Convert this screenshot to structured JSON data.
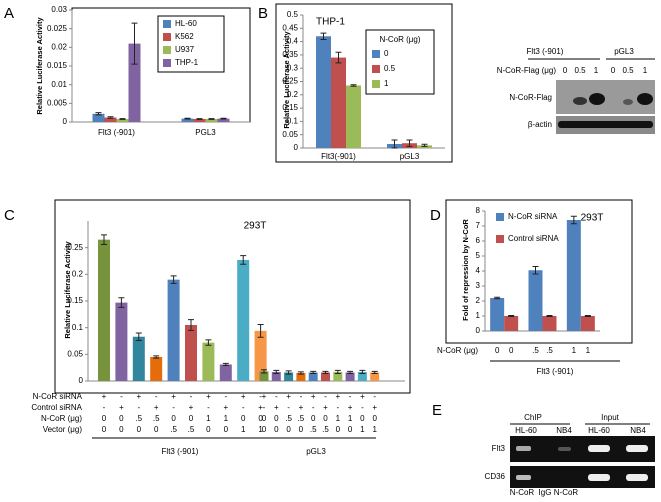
{
  "panel_letters": [
    "A",
    "B",
    "C",
    "D",
    "E"
  ],
  "chart_data": [
    {
      "type": "bar",
      "y_label": "Relative Luciferase Activity",
      "categories": [
        "Flt3 (-901)",
        "PGL3"
      ],
      "series": [
        {
          "name": "HL-60",
          "color": "#4f81bd",
          "values": [
            0.0022,
            0.0009
          ],
          "errors": [
            0.0003,
            0.0001
          ]
        },
        {
          "name": "K562",
          "color": "#c0504d",
          "values": [
            0.0012,
            0.0008
          ],
          "errors": [
            0.0002,
            0.0001
          ]
        },
        {
          "name": "U937",
          "color": "#9bbb59",
          "values": [
            0.0008,
            0.0008
          ],
          "errors": [
            0.0001,
            0.0001
          ]
        },
        {
          "name": "THP-1",
          "color": "#8064a2",
          "values": [
            0.021,
            0.0009
          ],
          "errors": [
            0.0055,
            0.0001
          ]
        }
      ],
      "ylim": [
        0,
        0.03
      ],
      "yticks": [
        0,
        0.005,
        0.01,
        0.015,
        0.02,
        0.025,
        0.03
      ],
      "legend": "upper right"
    },
    {
      "type": "bar",
      "title": "THP-1",
      "y_label": "Relative Luciferase Activity",
      "categories": [
        "Flt3(-901)",
        "pGL3"
      ],
      "legend_title": "N-CoR (μg)",
      "series": [
        {
          "name": "0",
          "color": "#4f81bd",
          "values": [
            0.42,
            0.015
          ],
          "errors": [
            0.012,
            0.015
          ]
        },
        {
          "name": "0.5",
          "color": "#c0504d",
          "values": [
            0.34,
            0.018
          ],
          "errors": [
            0.02,
            0.012
          ]
        },
        {
          "name": "1",
          "color": "#9bbb59",
          "values": [
            0.235,
            0.01
          ],
          "errors": [
            0.003,
            0.004
          ]
        }
      ],
      "ylim": [
        0,
        0.5
      ],
      "yticks": [
        0,
        0.05,
        0.1,
        0.15,
        0.2,
        0.25,
        0.3,
        0.35,
        0.4,
        0.45,
        0.5
      ],
      "legend": "upper right"
    },
    {
      "type": "bar",
      "title": "293T",
      "y_label": "Relative Luciferase Activity",
      "values": [
        0.265,
        0.147,
        0.083,
        0.045,
        0.19,
        0.105,
        0.072,
        0.031,
        0.227,
        0.094,
        0.018,
        0.017,
        0.016,
        0.015,
        0.016,
        0.016,
        0.017,
        0.016,
        0.017,
        0.016
      ],
      "errors": [
        0.009,
        0.009,
        0.007,
        0.002,
        0.007,
        0.01,
        0.005,
        0.002,
        0.008,
        0.012,
        0.003,
        0.003,
        0.003,
        0.002,
        0.002,
        0.002,
        0.003,
        0.002,
        0.003,
        0.002
      ],
      "colors": [
        "#77933c",
        "#8064a2",
        "#31859c",
        "#e46c0a",
        "#4f81bd",
        "#c0504d",
        "#9bbb59",
        "#8064a2",
        "#4bacc6",
        "#f79646",
        "#77933c",
        "#8064a2",
        "#31859c",
        "#e46c0a",
        "#4f81bd",
        "#c0504d",
        "#9bbb59",
        "#8064a2",
        "#4bacc6",
        "#f79646"
      ],
      "groups": [
        "Flt3 (-901)",
        "pGL3"
      ],
      "condition_rows": [
        {
          "label": "N-CoR siRNA",
          "values": [
            "+",
            "-",
            "+",
            "-",
            "+",
            "-",
            "+",
            "-",
            "+",
            "-",
            "+",
            "-",
            "+",
            "-",
            "+",
            "-",
            "+",
            "-",
            "+",
            "-"
          ]
        },
        {
          "label": "Control siRNA",
          "values": [
            "-",
            "+",
            "-",
            "+",
            "-",
            "+",
            "-",
            "+",
            "-",
            "+",
            "-",
            "+",
            "-",
            "+",
            "-",
            "+",
            "-",
            "+",
            "-",
            "+"
          ]
        },
        {
          "label": "N-CoR (μg)",
          "values": [
            "0",
            "0",
            ".5",
            ".5",
            "0",
            "0",
            "1",
            "1",
            "0",
            "0",
            "0",
            "0",
            ".5",
            ".5",
            "0",
            "0",
            "1",
            "1",
            "0",
            "0"
          ]
        },
        {
          "label": "Vector (μg)",
          "values": [
            "0",
            "0",
            "0",
            "0",
            ".5",
            ".5",
            "0",
            "0",
            "1",
            "1",
            "0",
            "0",
            "0",
            "0",
            ".5",
            ".5",
            "0",
            "0",
            "1",
            "1"
          ]
        }
      ],
      "ylim": [
        0,
        0.3
      ],
      "yticks": [
        0,
        0.05,
        0.1,
        0.15,
        0.2,
        0.25
      ]
    },
    {
      "type": "bar",
      "title": "293T",
      "y_label": "Fold of repression by N-CoR",
      "categories": [
        null,
        null,
        null
      ],
      "series": [
        {
          "name": "N-CoR siRNA",
          "color": "#4f81bd",
          "values": [
            2.2,
            4.05,
            7.4
          ],
          "errors": [
            0.05,
            0.25,
            0.25
          ]
        },
        {
          "name": "Control siRNA",
          "color": "#c0504d",
          "values": [
            1,
            1,
            1
          ],
          "errors": [
            0.03,
            0.03,
            0.03
          ]
        }
      ],
      "groups": [
        "Flt3 (-901)"
      ],
      "condition_rows": [
        {
          "label": "N-CoR (μg)",
          "values": [
            "0",
            "0",
            ".5",
            ".5",
            "1",
            "1"
          ]
        }
      ],
      "ylim": [
        0,
        8
      ],
      "yticks": [
        0,
        1,
        2,
        3,
        4,
        5,
        6,
        7,
        8
      ],
      "legend": "upper left"
    }
  ],
  "blot": {
    "groups": [
      "Flt3 (-901)",
      "pGL3"
    ],
    "dose_label": "N-CoR-Flag (μg)",
    "doses": [
      "0",
      "0.5",
      "1",
      "0",
      "0.5",
      "1"
    ],
    "rows": [
      "N-CoR-Flag",
      "β-actin"
    ]
  },
  "gel": {
    "groups": [
      "ChIP",
      "Input"
    ],
    "cells": [
      "HL-60",
      "NB4",
      "HL-60",
      "NB4"
    ],
    "rows": [
      "Flt3",
      "CD36"
    ],
    "lanes": [
      "N-CoR",
      "IgG",
      "N-CoR"
    ]
  }
}
